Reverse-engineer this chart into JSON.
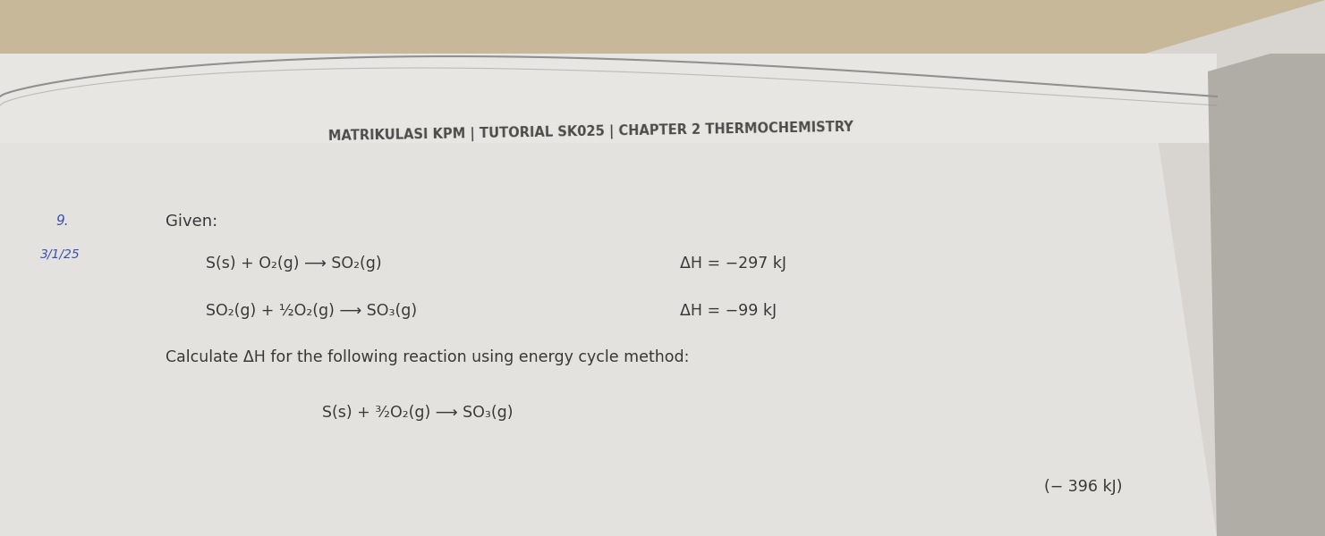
{
  "title": "MATRIKULASI KPM | TUTORIAL SK025 | CHAPTER 2 THERMOCHEMISTRY",
  "title_fontsize": 10.5,
  "title_color": "#4a4a4a",
  "bg_top_color": "#c8b89a",
  "bg_bottom_color": "#c0bab4",
  "page_color": "#dcdad6",
  "page_color2": "#e4e2de",
  "question_number": "9.",
  "date_note": "3/1/25",
  "given_label": "Given:",
  "eq1_left": "S(s) + O₂(g) ⟶ SO₂(g)",
  "eq1_right": "ΔH = −297 kJ",
  "eq2_left": "SO₂(g) + ½O₂(g) ⟶ SO₃(g)",
  "eq2_right": "ΔH = −99 kJ",
  "calc_label": "Calculate ΔH for the following reaction using energy cycle method:",
  "eq3": "S(s) + ³⁄₂O₂(g) ⟶ SO₃(g)",
  "answer": "(− 396 kJ)",
  "text_color": "#383838",
  "handwrite_color": "#3a50b0",
  "curve_color": "#909090",
  "right_page_color": "#d8d5d0",
  "right_shadow_color": "#b0aca6"
}
